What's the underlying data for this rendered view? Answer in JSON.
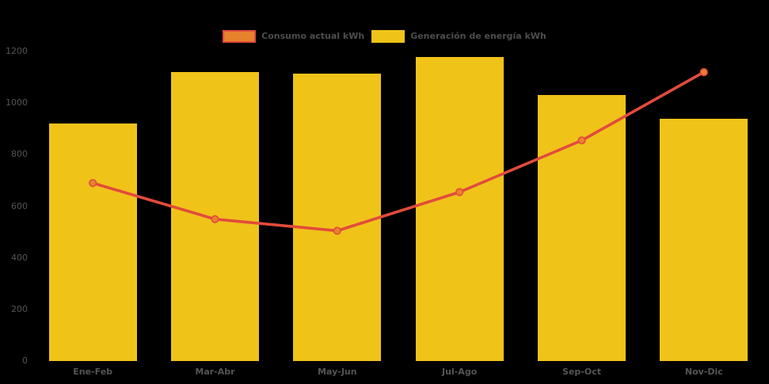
{
  "chart": {
    "background_color": "#000000",
    "legend_text_color": "#4D4D4D",
    "axis_text_color": "#555555",
    "legend": [
      {
        "label": "Consumo actual kWh",
        "swatch_fill": "#E8822D",
        "swatch_border": "#E24B3B"
      },
      {
        "label": "Generación de energía kWh",
        "swatch_fill": "#F0C319",
        "swatch_border": "#F0C319"
      }
    ]
  },
  "chart_data": {
    "type": "combo-bar-line",
    "title": "",
    "xlabel": "",
    "ylabel": "",
    "categories": [
      "Ene-Feb",
      "Mar-Abr",
      "May-Jun",
      "Jul-Ago",
      "Sep-Oct",
      "Nov-Dic"
    ],
    "series": [
      {
        "name": "Consumo actual kWh",
        "type": "line",
        "color": "#E24B3B",
        "marker_fill": "#E8822D",
        "values": [
          690,
          550,
          505,
          655,
          855,
          1120
        ]
      },
      {
        "name": "Generación de energía kWh",
        "type": "bar",
        "color": "#F0C319",
        "values": [
          920,
          1120,
          1115,
          1180,
          1030,
          940
        ]
      }
    ],
    "ylim": [
      0,
      1200
    ],
    "yticks": [
      0,
      200,
      400,
      600,
      800,
      1000,
      1200
    ],
    "grid": false,
    "legend_position": "top-center"
  }
}
